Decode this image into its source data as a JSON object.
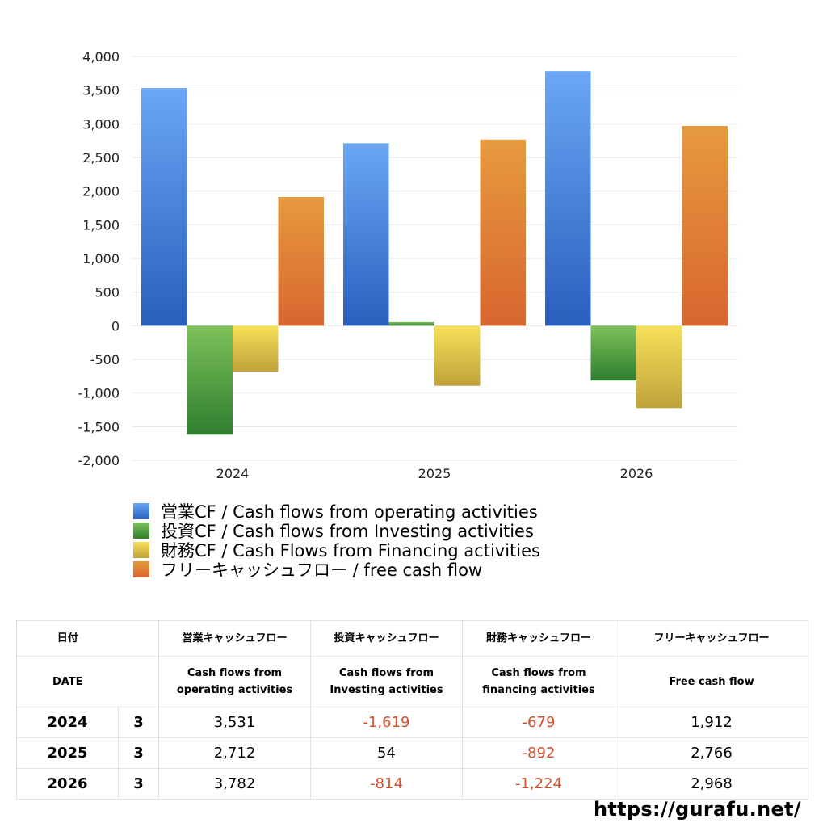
{
  "chart_data": {
    "type": "bar",
    "categories": [
      "2024",
      "2025",
      "2026"
    ],
    "series": [
      {
        "name": "営業CF / Cash flows from operating activities",
        "values": [
          3531,
          2712,
          3782
        ],
        "color": "#3a7ad8"
      },
      {
        "name": "投資CF / Cash flows from Investing activities",
        "values": [
          -1619,
          54,
          -814
        ],
        "color": "#4a9e3c"
      },
      {
        "name": "財務CF / Cash Flows from Financing activities",
        "values": [
          -679,
          -892,
          -1224
        ],
        "color": "#e5c842"
      },
      {
        "name": "フリーキャッシュフロー / free cash flow",
        "values": [
          1912,
          2766,
          2968
        ],
        "color": "#e0813a"
      }
    ],
    "ylim": [
      -2000,
      4000
    ],
    "ytick_step": 500,
    "yticks": [
      "4,000",
      "3,500",
      "3,000",
      "2,500",
      "2,000",
      "1,500",
      "1,000",
      "500",
      "0",
      "-500",
      "-1,000",
      "-1,500",
      "-2,000"
    ],
    "grid": true,
    "legend_position": "bottom"
  },
  "table": {
    "header_jp": [
      "日付",
      "営業キャッシュフロー",
      "投資キャッシュフロー",
      "財務キャッシュフロー",
      "フリーキャッシュフロー"
    ],
    "header_en": [
      "DATE",
      "Cash flows from\noperating activities",
      "Cash flows from\nInvesting activities",
      "Cash flows from\nfinancing activities",
      "Free cash flow"
    ],
    "rows": [
      {
        "year": "2024",
        "month": "3",
        "values": [
          "3,531",
          "-1,619",
          "-679",
          "1,912"
        ]
      },
      {
        "year": "2025",
        "month": "3",
        "values": [
          "2,712",
          "54",
          "-892",
          "2,766"
        ]
      },
      {
        "year": "2026",
        "month": "3",
        "values": [
          "3,782",
          "-814",
          "-1,224",
          "2,968"
        ]
      }
    ]
  },
  "site_url": "https://gurafu.net/"
}
